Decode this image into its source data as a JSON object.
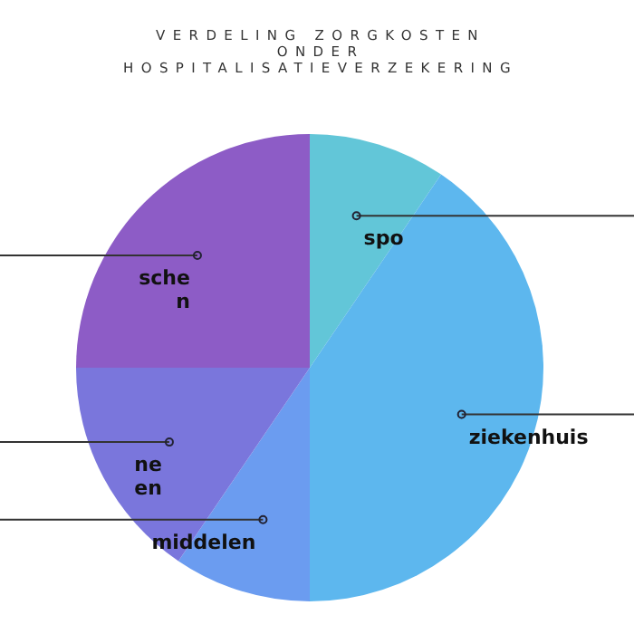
{
  "chart_data": {
    "type": "pie",
    "title": "VERDELING ZORGKOSTEN\nONDER\nHOSPITALISATIEVERZEKERING",
    "categories": [
      "spo",
      "ziekenhuis",
      "middelen",
      "ne\nen",
      "sche\nn"
    ],
    "values": [
      9.5,
      40.5,
      9.5,
      15.5,
      25
    ],
    "colors": [
      "#62c6d8",
      "#5db7ee",
      "#6b9cf0",
      "#7a76dc",
      "#8d5cc6"
    ]
  }
}
